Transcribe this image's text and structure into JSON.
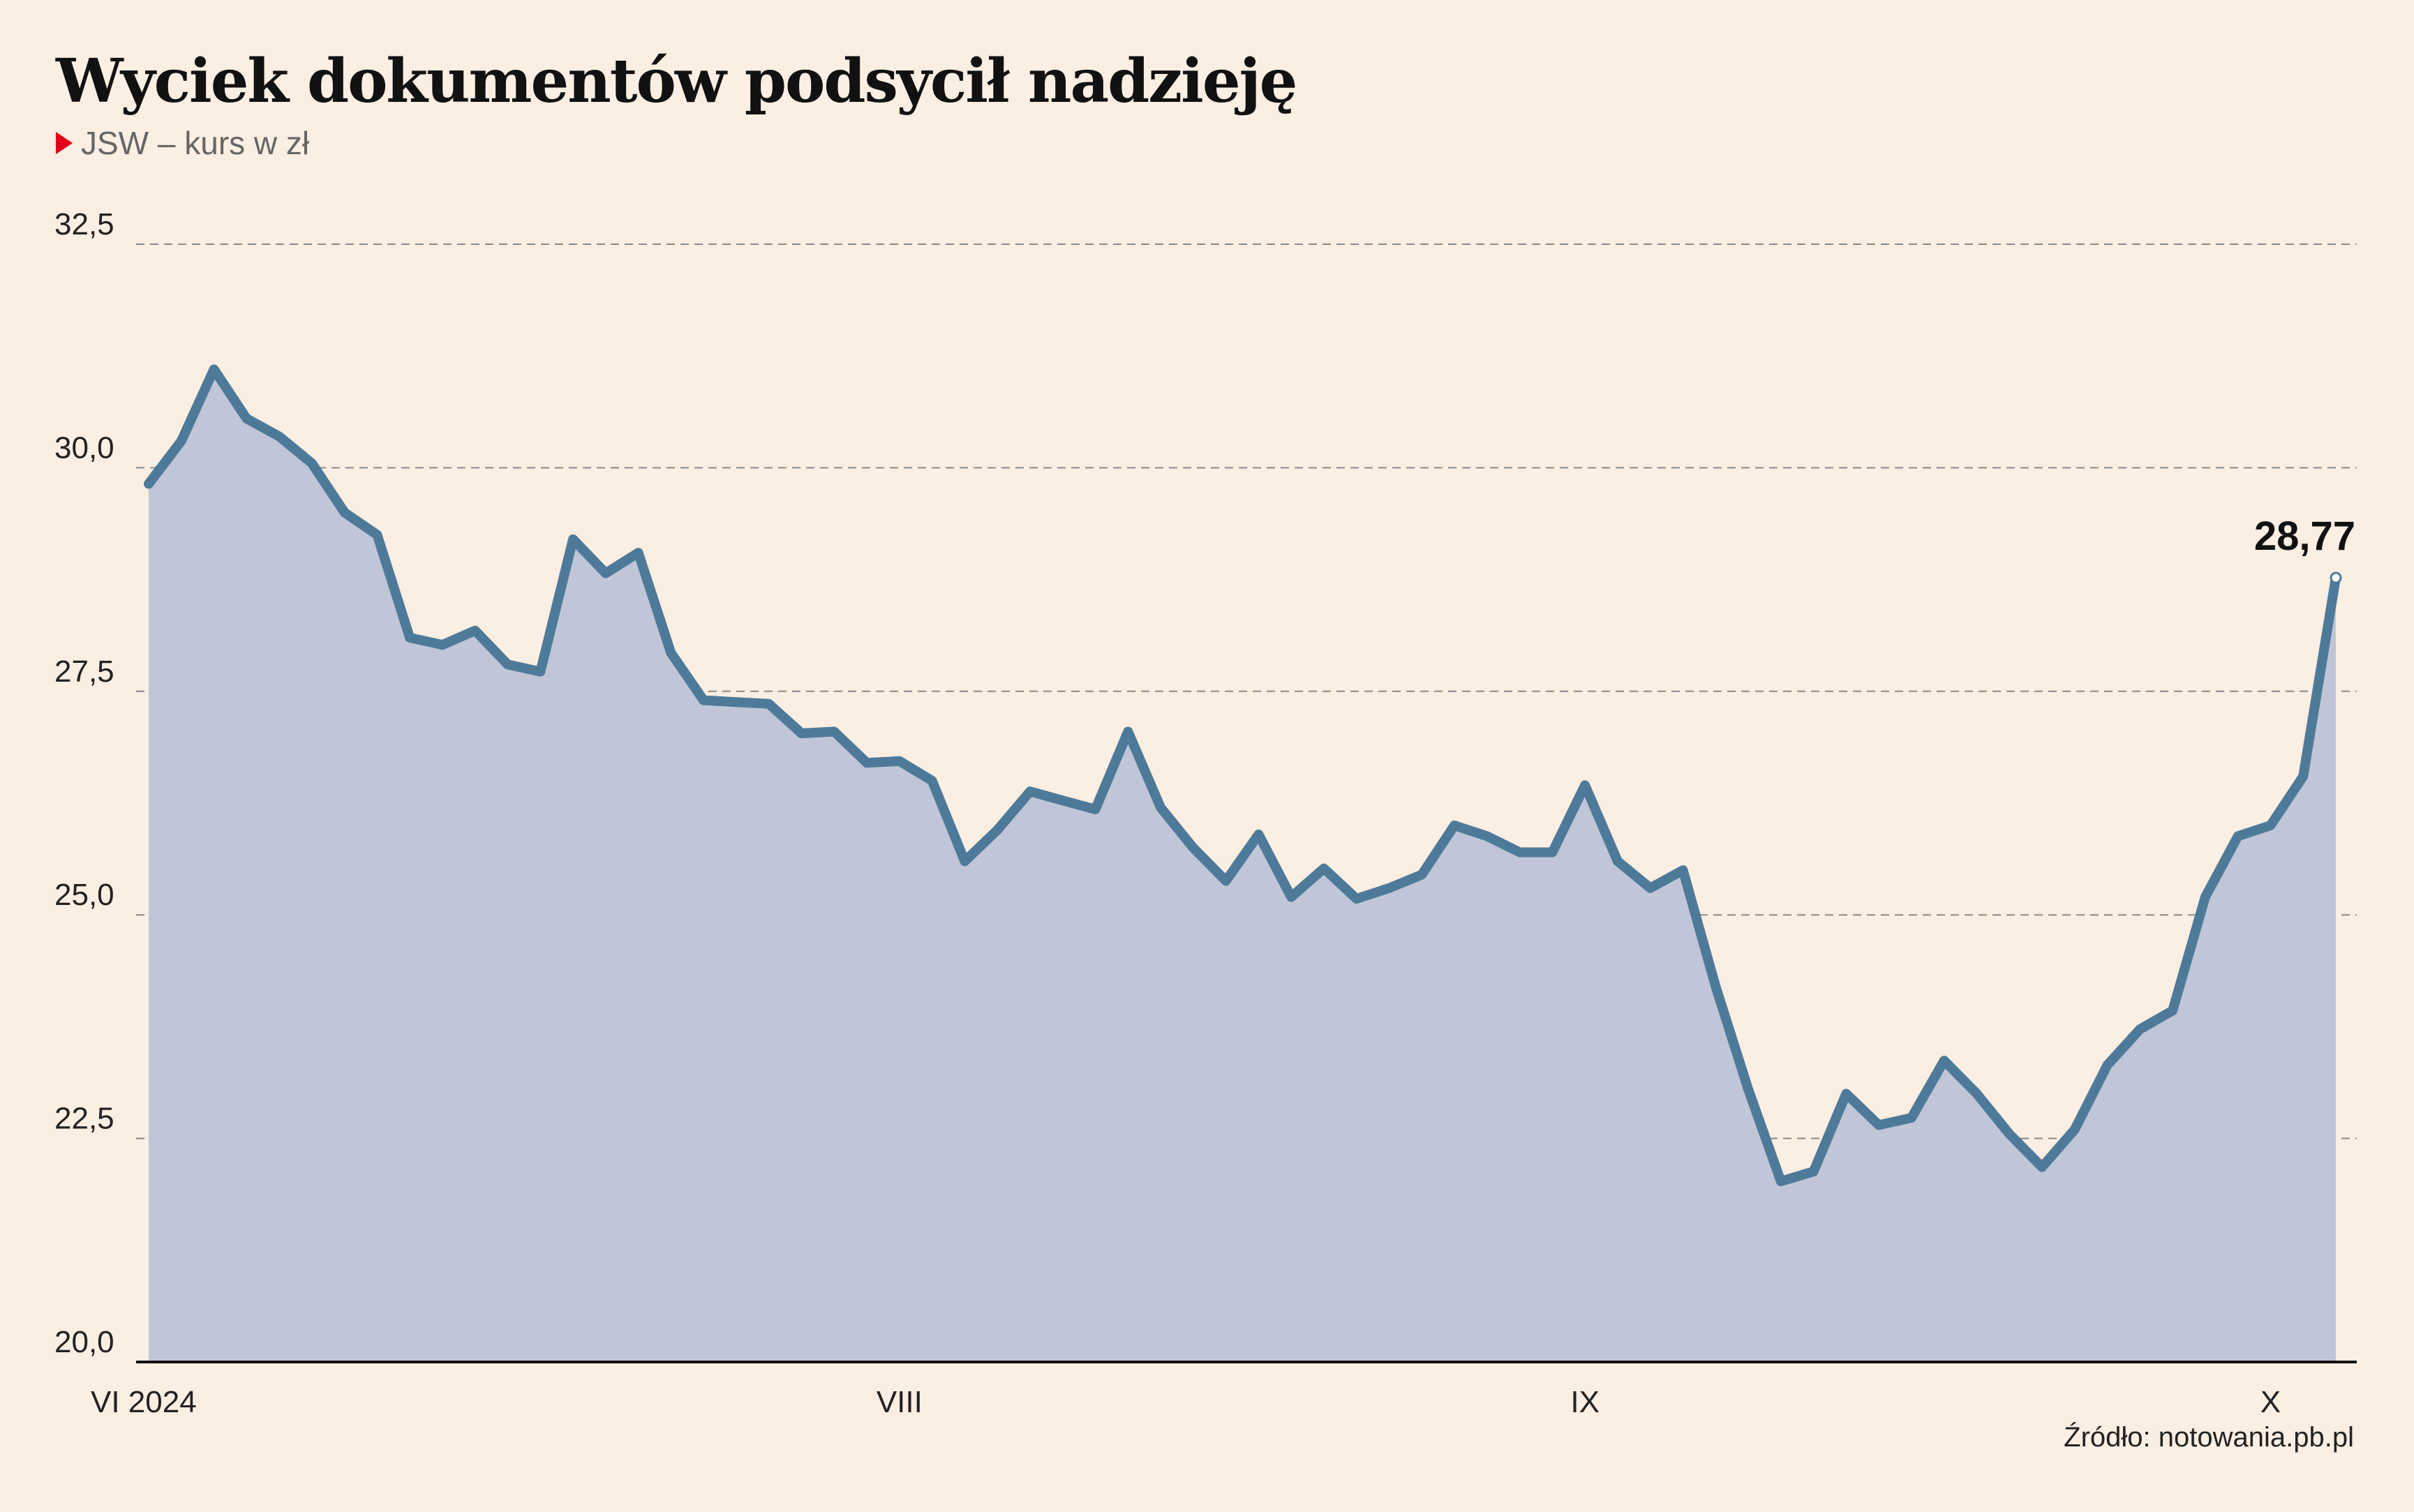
{
  "title": "Wyciek dokumentów podsycił nadzieję",
  "subtitle": "JSW – kurs w zł",
  "source": "Źródło: notowania.pb.pl",
  "colors": {
    "background": "#fbeee2",
    "line": "#4e7a9a",
    "area": "#c0c6d7",
    "grid": "#8a8a8a",
    "marker": "#e2001a"
  },
  "chart_data": {
    "type": "area",
    "title": "Wyciek dokumentów podsycił nadzieję",
    "subtitle": "JSW – kurs w zł",
    "ylim": [
      20,
      32.5
    ],
    "yticks": [
      "20,0",
      "22,5",
      "25,0",
      "27,5",
      "30,0",
      "32,5"
    ],
    "ytick_values": [
      20,
      22.5,
      25,
      27.5,
      30,
      32.5
    ],
    "xticks": [
      {
        "label": "VI 2024",
        "index": 0
      },
      {
        "label": "VIII",
        "index": 23
      },
      {
        "label": "IX",
        "index": 44
      },
      {
        "label": "X",
        "index": 65
      }
    ],
    "grid": true,
    "series": [
      {
        "values": [
          29.82,
          30.3,
          31.1,
          30.55,
          30.35,
          30.05,
          29.5,
          29.25,
          28.1,
          28.02,
          28.18,
          27.8,
          27.72,
          29.2,
          28.82,
          29.05,
          27.93,
          27.4,
          27.38,
          27.36,
          27.03,
          27.05,
          26.7,
          26.72,
          26.5,
          25.6,
          25.95,
          26.38,
          26.28,
          26.18,
          27.05,
          26.2,
          25.75,
          25.38,
          25.9,
          25.2,
          25.52,
          25.18,
          25.3,
          25.45,
          26.0,
          25.88,
          25.7,
          25.7,
          26.45,
          25.6,
          25.3,
          25.5,
          24.2,
          23.05,
          22.02,
          22.13,
          23.0,
          22.65,
          22.73,
          23.37,
          23.0,
          22.55,
          22.18,
          22.6,
          23.32,
          23.72,
          23.93,
          25.2,
          25.88,
          26.0,
          26.55,
          28.77
        ]
      }
    ],
    "annotations": [
      {
        "label": "28,77",
        "index": 67
      }
    ]
  }
}
